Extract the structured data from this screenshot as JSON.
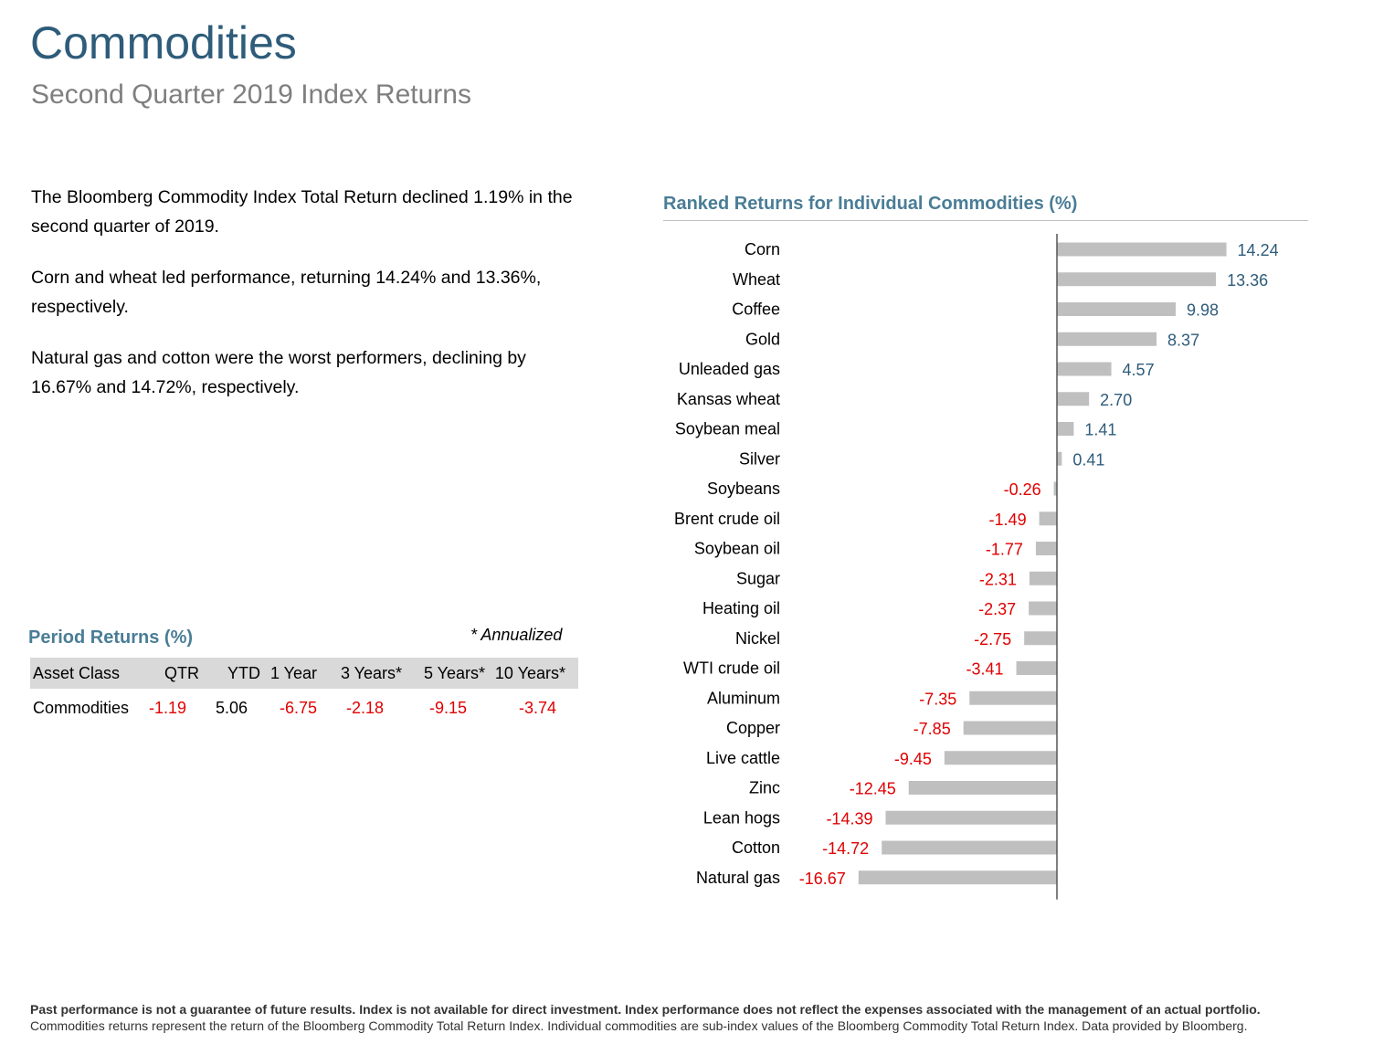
{
  "header": {
    "title": "Commodities",
    "subtitle": "Second Quarter 2019 Index Returns"
  },
  "commentary": [
    "The Bloomberg Commodity Index Total Return declined 1.19% in the second quarter of 2019.",
    "Corn and wheat led performance, returning 14.24% and 13.36%, respectively.",
    "Natural gas and cotton were the worst performers, declining by 16.67% and 14.72%, respectively."
  ],
  "period_returns": {
    "title": "Period Returns (%)",
    "note": "* Annualized",
    "columns": [
      "Asset Class",
      "QTR",
      "YTD",
      "1 Year",
      "3 Years*",
      "5 Years*",
      "10 Years*"
    ],
    "row": [
      "Commodities",
      "-1.19",
      "5.06",
      "-6.75",
      "-2.18",
      "-9.15",
      "-3.74"
    ]
  },
  "chart_data": {
    "type": "bar",
    "orientation": "horizontal",
    "title": "Ranked Returns for Individual Commodities (%)",
    "categories": [
      "Corn",
      "Wheat",
      "Coffee",
      "Gold",
      "Unleaded gas",
      "Kansas wheat",
      "Soybean meal",
      "Silver",
      "Soybeans",
      "Brent crude oil",
      "Soybean oil",
      "Sugar",
      "Heating oil",
      "Nickel",
      "WTI crude oil",
      "Aluminum",
      "Copper",
      "Live cattle",
      "Zinc",
      "Lean hogs",
      "Cotton",
      "Natural gas"
    ],
    "values": [
      14.24,
      13.36,
      9.98,
      8.37,
      4.57,
      2.7,
      1.41,
      0.41,
      -0.26,
      -1.49,
      -1.77,
      -2.31,
      -2.37,
      -2.75,
      -3.41,
      -7.35,
      -7.85,
      -9.45,
      -12.45,
      -14.39,
      -14.72,
      -16.67
    ],
    "labels": [
      "14.24",
      "13.36",
      "9.98",
      "8.37",
      "4.57",
      "2.70",
      "1.41",
      "0.41",
      "-0.26",
      "-1.49",
      "-1.77",
      "-2.31",
      "-2.37",
      "-2.75",
      "-3.41",
      "-7.35",
      "-7.85",
      "-9.45",
      "-12.45",
      "-14.39",
      "-14.72",
      "-16.67"
    ],
    "bar_color": "#bfbfbf",
    "positive_label_color": "#2e5c7a",
    "negative_label_color": "#e00000",
    "grid": false,
    "legend": "none"
  },
  "footer": {
    "disclaimer": "Past performance is not a guarantee of future results. Index is not available for direct investment. Index performance does not reflect the expenses associated with the management of an actual portfolio.",
    "source": "Commodities returns represent the return of the Bloomberg Commodity Total Return Index. Individual commodities are sub-index values of the Bloomberg Commodity Total Return Index. Data provided by Bloomberg."
  }
}
